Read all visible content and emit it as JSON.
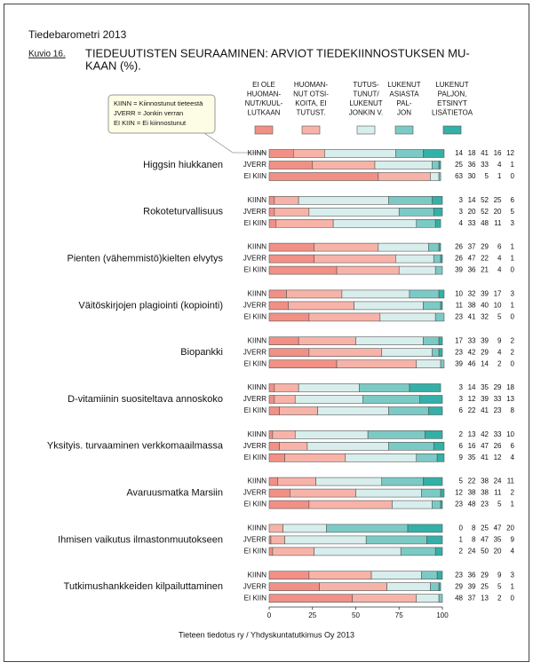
{
  "chart_data": {
    "type": "stacked-bar-groups",
    "header": "Tiedebarometri 2013",
    "figure_label": "Kuvio 16.",
    "title": [
      "TIEDEUUTISTEN SEURAAMINEN: ARVIOT TIEDEKIINNOSTUKSEN MU-",
      "KAAN (%)."
    ],
    "note": [
      "KIINN = Kiinnostunut tieteestä",
      "JVERR = Jonkin verran",
      "EI KIIN = Ei kiinnostunut"
    ],
    "source": "Tieteen tiedotus ry / Yhdyskuntatutkimus Oy 2013",
    "categories": [
      "Higgsin hiukkanen",
      "Rokoteturvallisuus",
      "Pienten (vähemmistö)kielten elvytys",
      "Väitöskirjojen plagiointi (kopiointi)",
      "Biopankki",
      "D-vitamiinin suositeltava annoskoko",
      "Yksityis. turvaaminen verkkomaailmassa",
      "Avaruusmatka Marsiin",
      "Ihmisen vaikutus ilmastonmuutokseen",
      "Tutkimushankkeiden kilpailuttaminen"
    ],
    "row_labels": [
      "KIINN",
      "JVERR",
      "EI KIIN"
    ],
    "series": [
      {
        "name": [
          "EI OLE",
          "HUOMAN-",
          "NUT/KUUL-",
          "LUTKAAN"
        ],
        "color": "#f29086",
        "values": [
          [
            14,
            25,
            63
          ],
          [
            3,
            3,
            4
          ],
          [
            26,
            26,
            39
          ],
          [
            10,
            11,
            23
          ],
          [
            17,
            23,
            39
          ],
          [
            3,
            3,
            6
          ],
          [
            2,
            6,
            9
          ],
          [
            5,
            12,
            23
          ],
          [
            0,
            1,
            2
          ],
          [
            23,
            29,
            48
          ]
        ]
      },
      {
        "name": [
          "HUOMAN-",
          "NUT OTSI-",
          "KOITA, EI",
          "TUTUST."
        ],
        "color": "#f8b3a9",
        "values": [
          [
            18,
            36,
            30
          ],
          [
            14,
            20,
            33
          ],
          [
            37,
            47,
            36
          ],
          [
            32,
            38,
            41
          ],
          [
            33,
            42,
            46
          ],
          [
            14,
            12,
            22
          ],
          [
            13,
            16,
            35
          ],
          [
            22,
            38,
            48
          ],
          [
            8,
            8,
            24
          ],
          [
            36,
            39,
            37
          ]
        ]
      },
      {
        "name": [
          "TUTUS-",
          "TUNUT/",
          "LUKENUT",
          "JONKIN V."
        ],
        "color": "#d8eeed",
        "values": [
          [
            41,
            33,
            5
          ],
          [
            52,
            52,
            48
          ],
          [
            29,
            22,
            21
          ],
          [
            39,
            40,
            32
          ],
          [
            39,
            29,
            14
          ],
          [
            35,
            39,
            41
          ],
          [
            42,
            47,
            41
          ],
          [
            38,
            38,
            23
          ],
          [
            25,
            47,
            50
          ],
          [
            29,
            25,
            13
          ]
        ]
      },
      {
        "name": [
          "LUKENUT",
          "ASIASTA",
          "PAL-",
          "JON"
        ],
        "color": "#7ccac5",
        "values": [
          [
            16,
            4,
            1
          ],
          [
            25,
            20,
            11
          ],
          [
            6,
            4,
            4
          ],
          [
            17,
            10,
            5
          ],
          [
            9,
            4,
            2
          ],
          [
            29,
            33,
            23
          ],
          [
            33,
            26,
            12
          ],
          [
            24,
            11,
            5
          ],
          [
            47,
            35,
            20
          ],
          [
            9,
            5,
            2
          ]
        ]
      },
      {
        "name": [
          "LUKENUT",
          "PALJON,",
          "ETSINYT",
          "LISÄTIETOA"
        ],
        "color": "#33b0a7",
        "values": [
          [
            12,
            1,
            0
          ],
          [
            6,
            5,
            3
          ],
          [
            1,
            1,
            0
          ],
          [
            3,
            1,
            0
          ],
          [
            2,
            2,
            0
          ],
          [
            18,
            13,
            8
          ],
          [
            10,
            6,
            4
          ],
          [
            11,
            2,
            1
          ],
          [
            20,
            9,
            4
          ],
          [
            3,
            1,
            0
          ]
        ]
      }
    ],
    "xlim": [
      0,
      100
    ],
    "xticks": [
      0,
      25,
      50,
      75,
      100
    ]
  }
}
